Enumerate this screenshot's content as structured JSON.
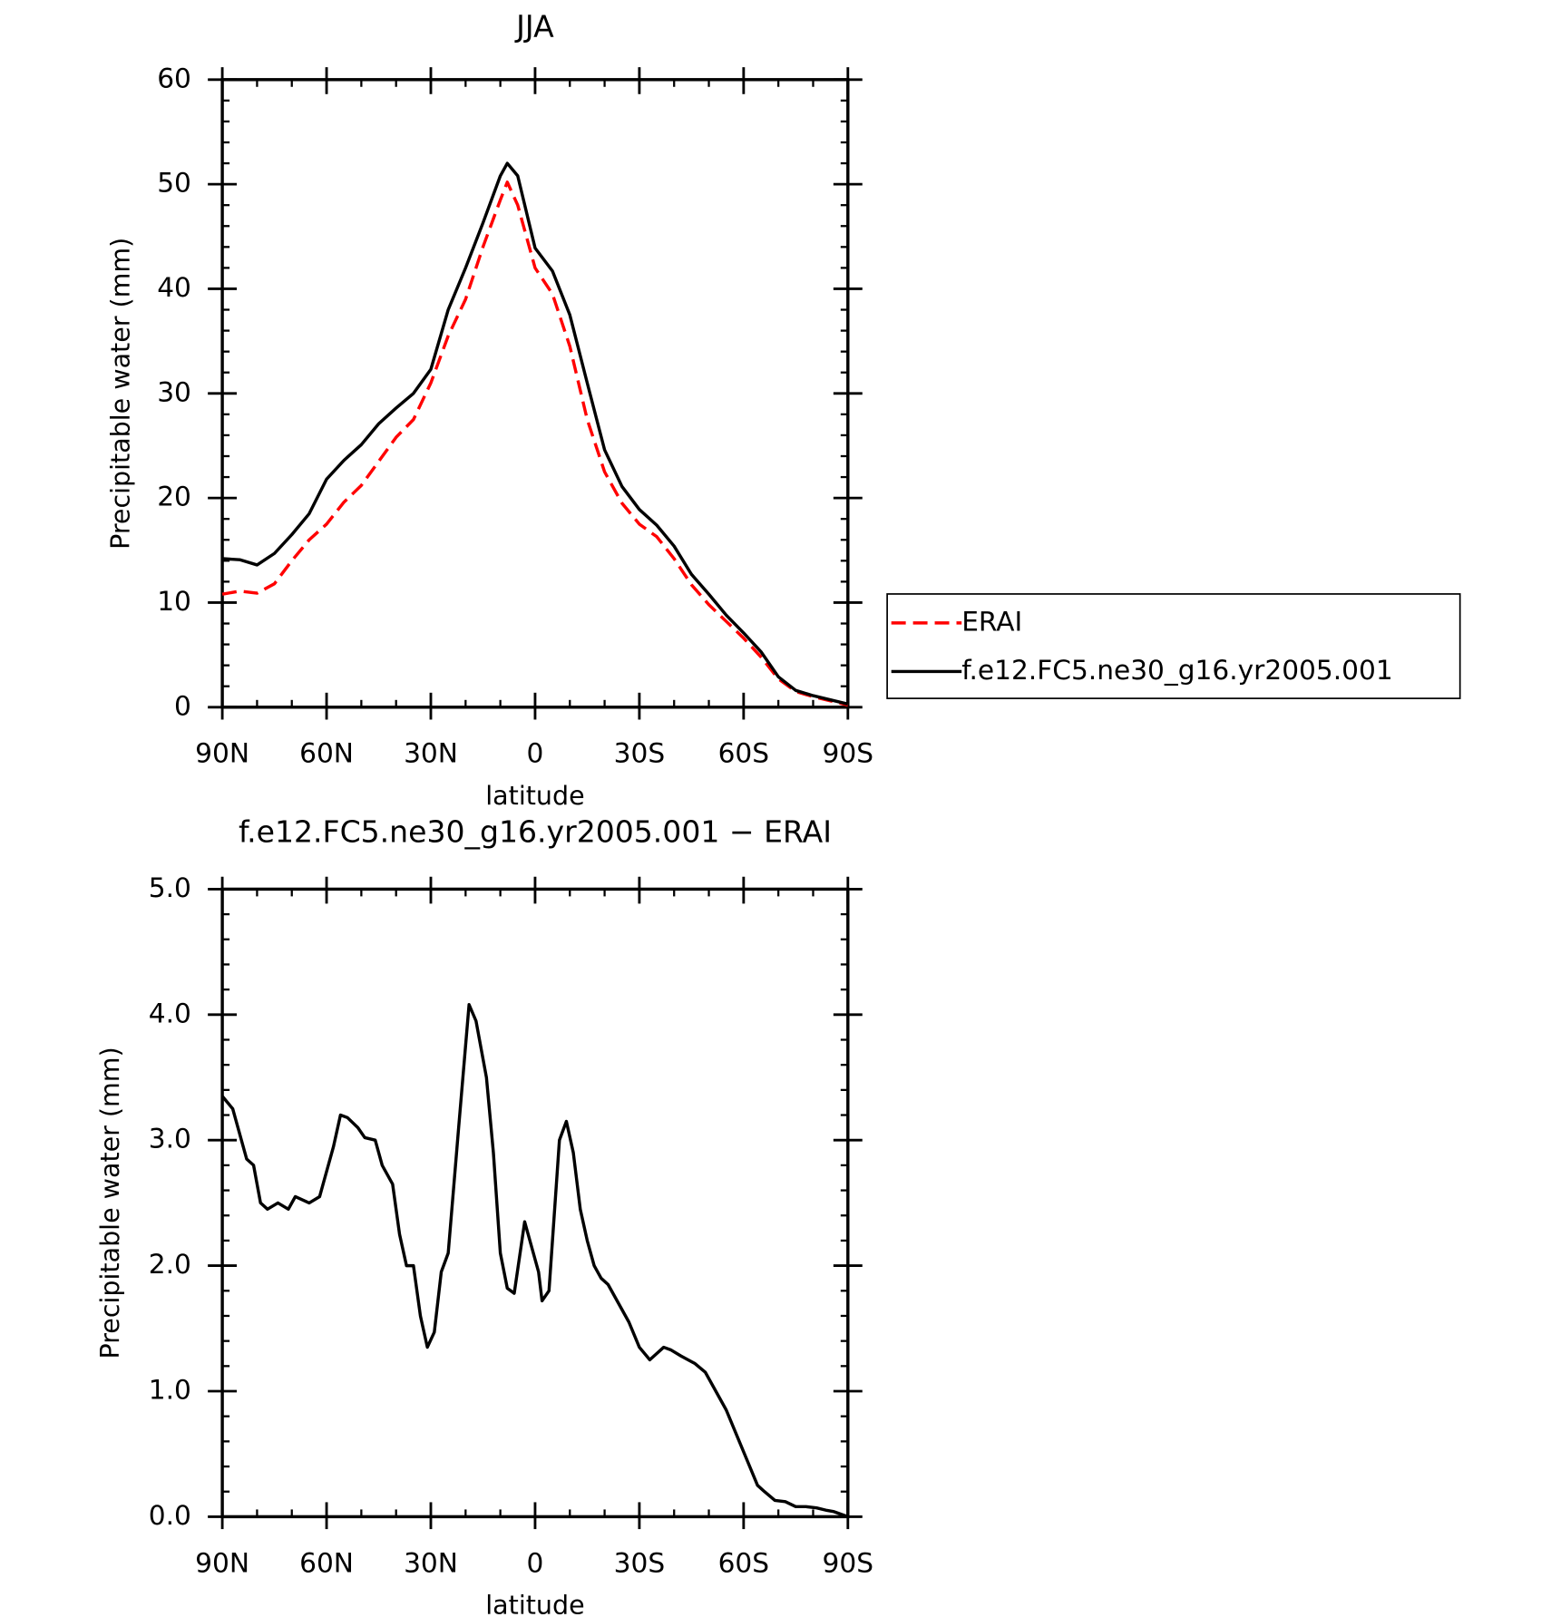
{
  "chart_data": [
    {
      "type": "line",
      "title": "JJA",
      "xlabel": "latitude",
      "ylabel": "Precipitable water (mm)",
      "x": [
        90,
        85,
        80,
        75,
        70,
        65,
        60,
        55,
        50,
        45,
        40,
        35,
        30,
        25,
        20,
        15,
        10,
        8,
        5,
        0,
        -5,
        -10,
        -15,
        -20,
        -25,
        -30,
        -35,
        -40,
        -45,
        -50,
        -55,
        -60,
        -65,
        -70,
        -75,
        -80,
        -85,
        -90
      ],
      "series": [
        {
          "name": "ERAI",
          "color": "#ff0000",
          "dash": true,
          "values": [
            10.8,
            11.1,
            10.9,
            11.8,
            14,
            16,
            17.5,
            19.6,
            21.2,
            23.5,
            25.8,
            27.5,
            31,
            35.5,
            39,
            44,
            48.5,
            50.2,
            48,
            42,
            39.5,
            34.5,
            27.5,
            22.5,
            19.5,
            17.5,
            16.3,
            14.2,
            11.7,
            9.8,
            8.2,
            6.6,
            4.8,
            2.7,
            1.5,
            1.0,
            0.6,
            0.2
          ]
        },
        {
          "name": "f.e12.FC5.ne30_g16.yr2005.001",
          "color": "#000000",
          "dash": false,
          "values": [
            14.2,
            14.1,
            13.6,
            14.7,
            16.5,
            18.5,
            21.8,
            23.6,
            25.1,
            27.1,
            28.6,
            30,
            32.3,
            38,
            42,
            46.3,
            50.8,
            52,
            50.8,
            43.9,
            41.7,
            37.5,
            31,
            24.6,
            21.1,
            18.9,
            17.4,
            15.4,
            12.7,
            10.8,
            8.8,
            7.1,
            5.3,
            2.9,
            1.6,
            1.1,
            0.7,
            0.3
          ]
        }
      ],
      "xlim": [
        90,
        -90
      ],
      "xticks": [
        {
          "value": 90,
          "label": "90N"
        },
        {
          "value": 60,
          "label": "60N"
        },
        {
          "value": 30,
          "label": "30N"
        },
        0,
        {
          "value": -30,
          "label": "30S"
        },
        {
          "value": -60,
          "label": "60S"
        },
        {
          "value": -90,
          "label": "90S"
        }
      ],
      "ylim": [
        0,
        60
      ],
      "yticks": [
        0,
        10,
        20,
        30,
        40,
        50,
        60
      ],
      "legend": "right"
    },
    {
      "type": "line",
      "title": "f.e12.FC5.ne30_g16.yr2005.001 − ERAI",
      "xlabel": "latitude",
      "ylabel": "Precipitable water (mm)",
      "x": [
        90,
        87,
        83,
        81,
        79,
        77,
        74,
        71,
        69,
        65,
        62,
        60,
        58,
        56,
        54,
        51,
        49,
        46,
        44,
        41,
        39,
        37,
        35,
        33,
        31,
        29,
        27,
        25,
        22,
        19,
        17,
        14,
        12,
        10,
        8,
        6,
        3,
        -1,
        -2,
        -4,
        -6,
        -7,
        -9,
        -11,
        -13,
        -15,
        -17,
        -19,
        -21,
        -24,
        -27,
        -30,
        -33,
        -35,
        -37,
        -39,
        -42,
        -46,
        -49,
        -52,
        -55,
        -58,
        -61,
        -64,
        -66,
        -69,
        -72,
        -75,
        -78,
        -81,
        -84,
        -86,
        -88,
        -90
      ],
      "values": [
        3.35,
        3.25,
        2.85,
        2.8,
        2.5,
        2.45,
        2.5,
        2.45,
        2.55,
        2.5,
        2.55,
        2.75,
        2.95,
        3.2,
        3.18,
        3.1,
        3.02,
        3.0,
        2.8,
        2.65,
        2.25,
        2.0,
        2.0,
        1.6,
        1.35,
        1.47,
        1.95,
        2.1,
        3.1,
        4.08,
        3.95,
        3.5,
        2.9,
        2.1,
        1.82,
        1.78,
        2.35,
        1.95,
        1.72,
        1.8,
        2.6,
        3.0,
        3.15,
        2.9,
        2.45,
        2.2,
        2.0,
        1.9,
        1.85,
        1.7,
        1.55,
        1.35,
        1.25,
        1.3,
        1.35,
        1.33,
        1.28,
        1.22,
        1.15,
        1.0,
        0.85,
        0.65,
        0.45,
        0.25,
        0.2,
        0.13,
        0.12,
        0.08,
        0.08,
        0.07,
        0.05,
        0.04,
        0.02,
        0.0
      ],
      "color": "#000000",
      "xlim": [
        90,
        -90
      ],
      "xticks": [
        {
          "value": 90,
          "label": "90N"
        },
        {
          "value": 60,
          "label": "60N"
        },
        {
          "value": 30,
          "label": "30N"
        },
        0,
        {
          "value": -30,
          "label": "30S"
        },
        {
          "value": -60,
          "label": "60S"
        },
        {
          "value": -90,
          "label": "90S"
        }
      ],
      "ylim": [
        0,
        5
      ],
      "yticks": [
        {
          "value": 0,
          "label": "0.0"
        },
        {
          "value": 1,
          "label": "1.0"
        },
        {
          "value": 2,
          "label": "2.0"
        },
        {
          "value": 3,
          "label": "3.0"
        },
        {
          "value": 4,
          "label": "4.0"
        },
        {
          "value": 5,
          "label": "5.0"
        }
      ]
    }
  ]
}
